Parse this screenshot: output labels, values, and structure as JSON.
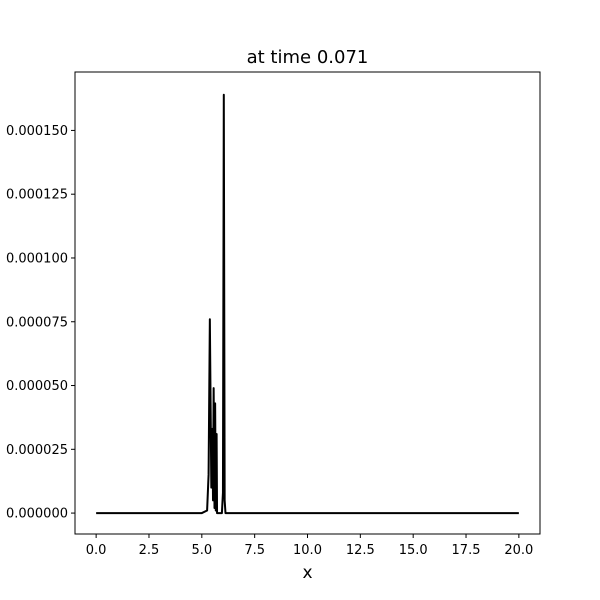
{
  "chart_data": {
    "type": "line",
    "title": "at time 0.071",
    "xlabel": "x",
    "ylabel": "",
    "xlim": [
      -1.0,
      21.0
    ],
    "ylim": [
      -8.2e-06,
      0.0001729
    ],
    "xticks": [
      "0.0",
      "2.5",
      "5.0",
      "7.5",
      "10.0",
      "12.5",
      "15.0",
      "17.5",
      "20.0"
    ],
    "xtick_values": [
      0.0,
      2.5,
      5.0,
      7.5,
      10.0,
      12.5,
      15.0,
      17.5,
      20.0
    ],
    "yticks": [
      "0.000000",
      "0.000025",
      "0.000050",
      "0.000075",
      "0.000100",
      "0.000125",
      "0.000150"
    ],
    "ytick_values": [
      0.0,
      2.5e-05,
      5e-05,
      7.5e-05,
      0.0001,
      0.000125,
      0.00015
    ],
    "grid": false,
    "series": [
      {
        "color": "#000000",
        "x": [
          0.0,
          5.0,
          5.25,
          5.32,
          5.38,
          5.45,
          5.5,
          5.53,
          5.56,
          5.6,
          5.63,
          5.66,
          5.7,
          5.72,
          5.75,
          5.78,
          5.85,
          5.95,
          6.0,
          6.04,
          6.08,
          6.12,
          6.18,
          7.0,
          20.0
        ],
        "y": [
          0.0,
          0.0,
          1e-06,
          1.5e-05,
          7.6e-05,
          1e-05,
          3.3e-05,
          5e-06,
          4.9e-05,
          2e-06,
          4.3e-05,
          1e-06,
          3.1e-05,
          0.0,
          0.0,
          0.0,
          0.0,
          0.0,
          8e-06,
          0.000164,
          5e-06,
          0.0,
          0.0,
          0.0,
          0.0
        ]
      }
    ]
  }
}
